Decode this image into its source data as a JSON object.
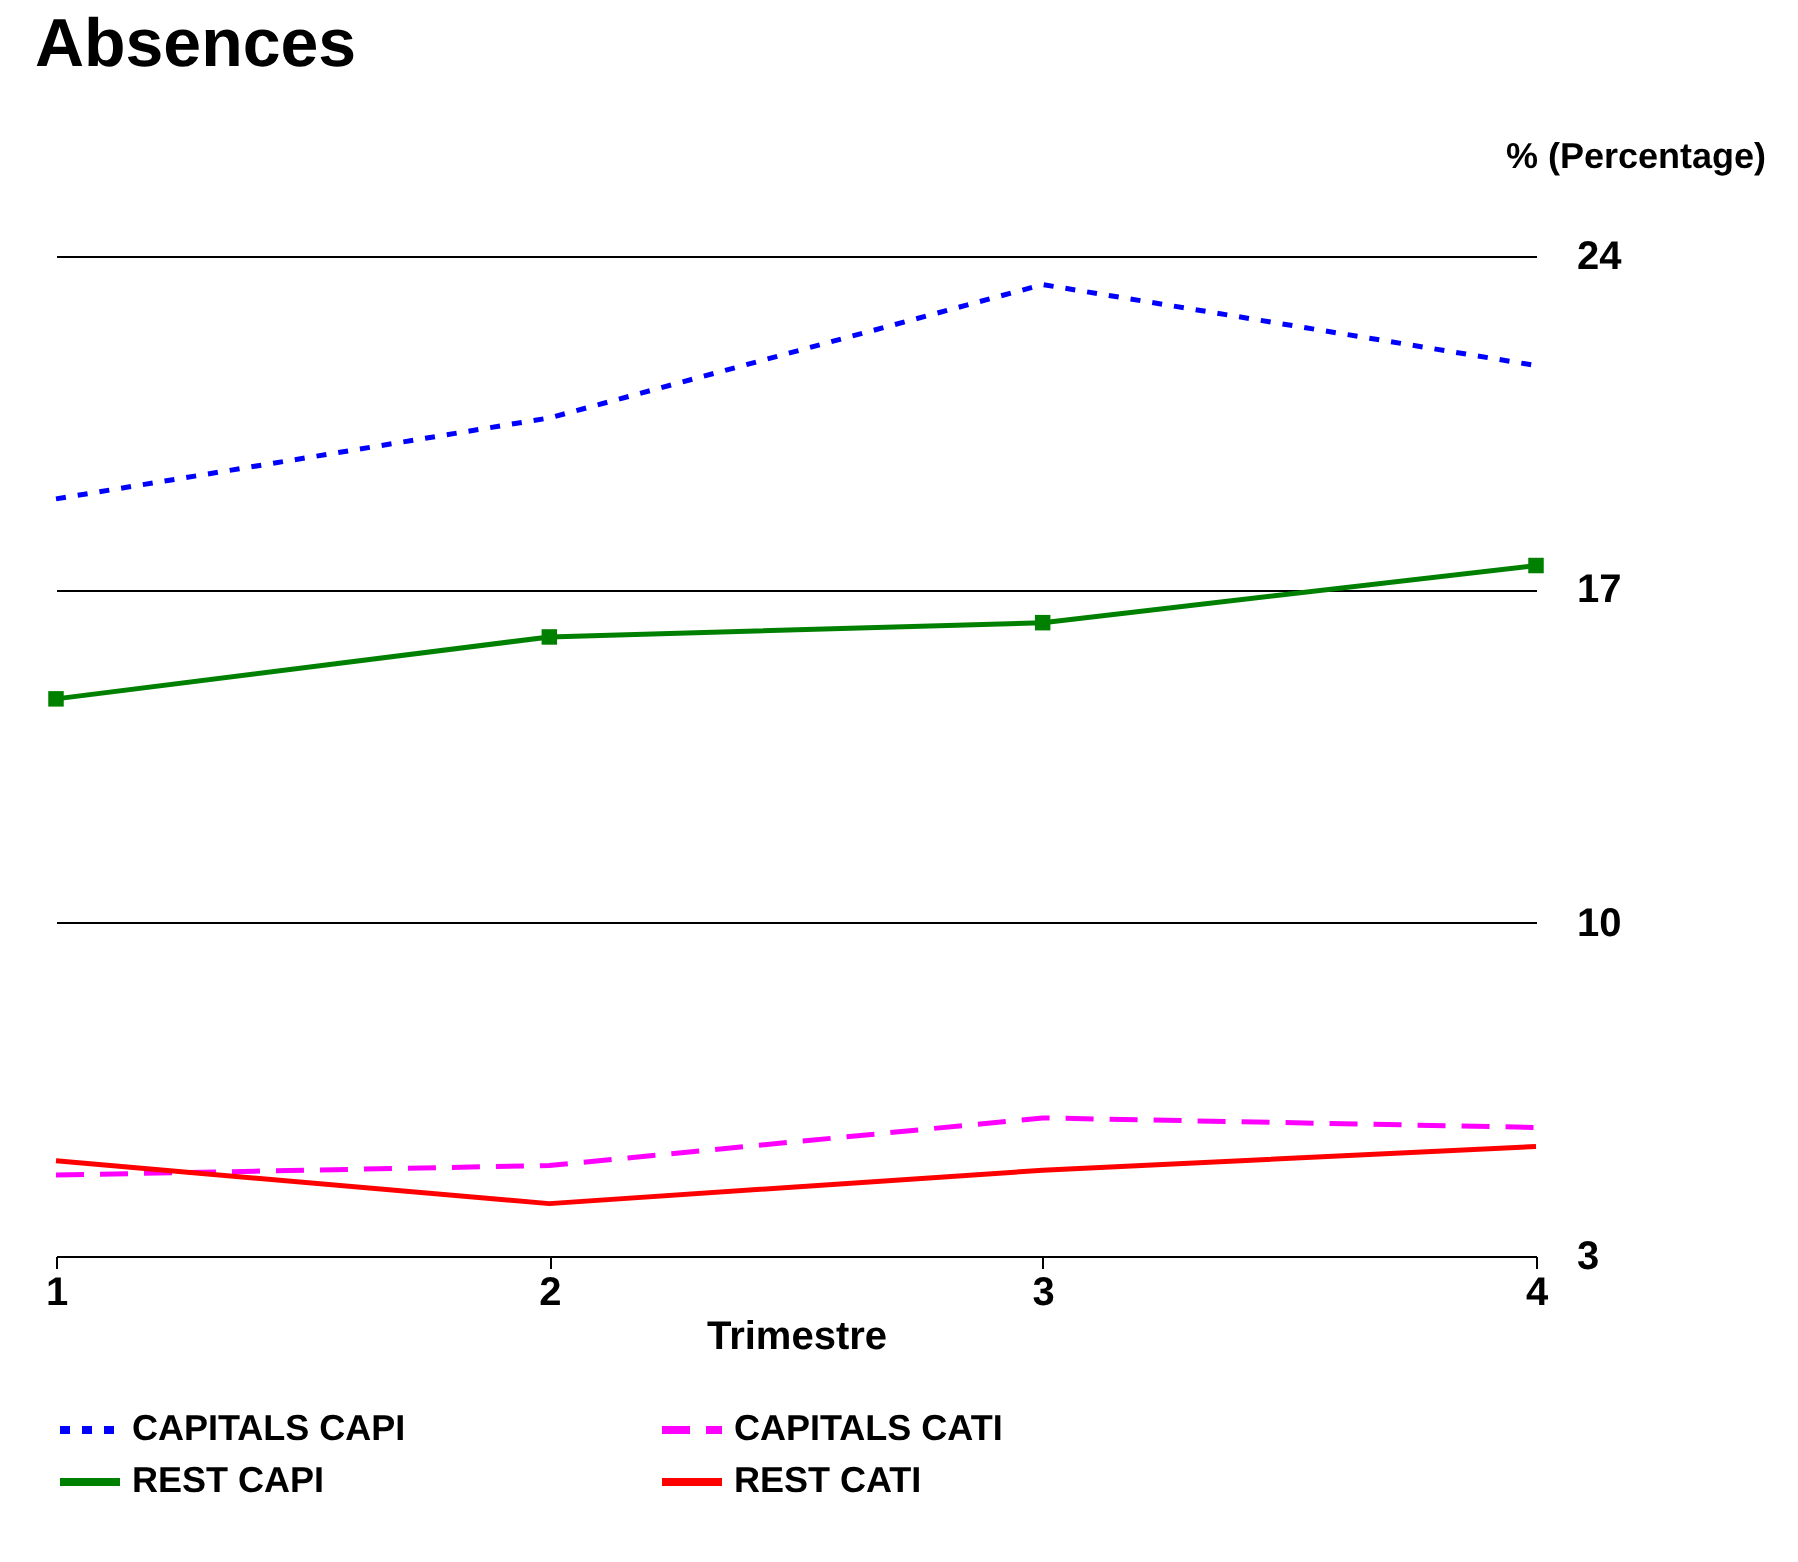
{
  "chart_data": {
    "type": "line",
    "title": "Absences",
    "xlabel": "Trimestre",
    "ylabel": "% (Percentage)",
    "x": [
      1,
      2,
      3,
      4
    ],
    "xlim": [
      1,
      4
    ],
    "xticks": [
      1,
      2,
      3,
      4
    ],
    "ylim": [
      3,
      24
    ],
    "yticks": [
      3,
      10,
      17,
      24
    ],
    "grid": "y",
    "legend": "bottom",
    "series": [
      {
        "name": "CAPITALS CAPI",
        "color": "#0000ff",
        "line_style": "dotted",
        "values": [
          18.9,
          20.6,
          23.4,
          21.7
        ]
      },
      {
        "name": "CAPITALS CATI",
        "color": "#ff00ff",
        "line_style": "dashed",
        "values": [
          4.7,
          4.9,
          5.9,
          5.7
        ]
      },
      {
        "name": "REST CAPI",
        "color": "#008000",
        "line_style": "solid",
        "marker": "square",
        "values": [
          14.7,
          16.0,
          16.3,
          17.5
        ]
      },
      {
        "name": "REST CATI",
        "color": "#ff0000",
        "line_style": "solid",
        "values": [
          5.0,
          4.1,
          4.8,
          5.3
        ]
      }
    ]
  }
}
